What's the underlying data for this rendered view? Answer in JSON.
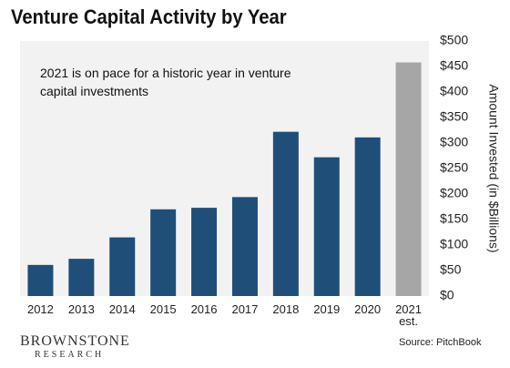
{
  "chart_data": {
    "type": "bar",
    "title": "Venture Capital Activity by Year",
    "annotation": "2021 is on pace for a historic year in venture capital investments",
    "y_axis_label": "Amount Invested (in $Billions)",
    "categories": [
      "2012",
      "2013",
      "2014",
      "2015",
      "2016",
      "2017",
      "2018",
      "2019",
      "2020",
      "2021 est."
    ],
    "values": [
      61,
      73,
      115,
      170,
      173,
      194,
      322,
      272,
      311,
      458
    ],
    "colors": [
      "#1f4e79",
      "#1f4e79",
      "#1f4e79",
      "#1f4e79",
      "#1f4e79",
      "#1f4e79",
      "#1f4e79",
      "#1f4e79",
      "#1f4e79",
      "#a6a6a6"
    ],
    "ylim": [
      0,
      500
    ],
    "yticks": [
      {
        "value": 0,
        "label": "$0"
      },
      {
        "value": 50,
        "label": "$50"
      },
      {
        "value": 100,
        "label": "$100"
      },
      {
        "value": 150,
        "label": "$150"
      },
      {
        "value": 200,
        "label": "$200"
      },
      {
        "value": 250,
        "label": "$250"
      },
      {
        "value": 300,
        "label": "$300"
      },
      {
        "value": 350,
        "label": "$350"
      },
      {
        "value": 400,
        "label": "$400"
      },
      {
        "value": 450,
        "label": "$450"
      },
      {
        "value": 500,
        "label": "$500"
      }
    ],
    "y_axis_side": "right",
    "logo": {
      "name": "BROWNSTONE",
      "tagline": "RESEARCH"
    },
    "source": "Source: PitchBook"
  }
}
